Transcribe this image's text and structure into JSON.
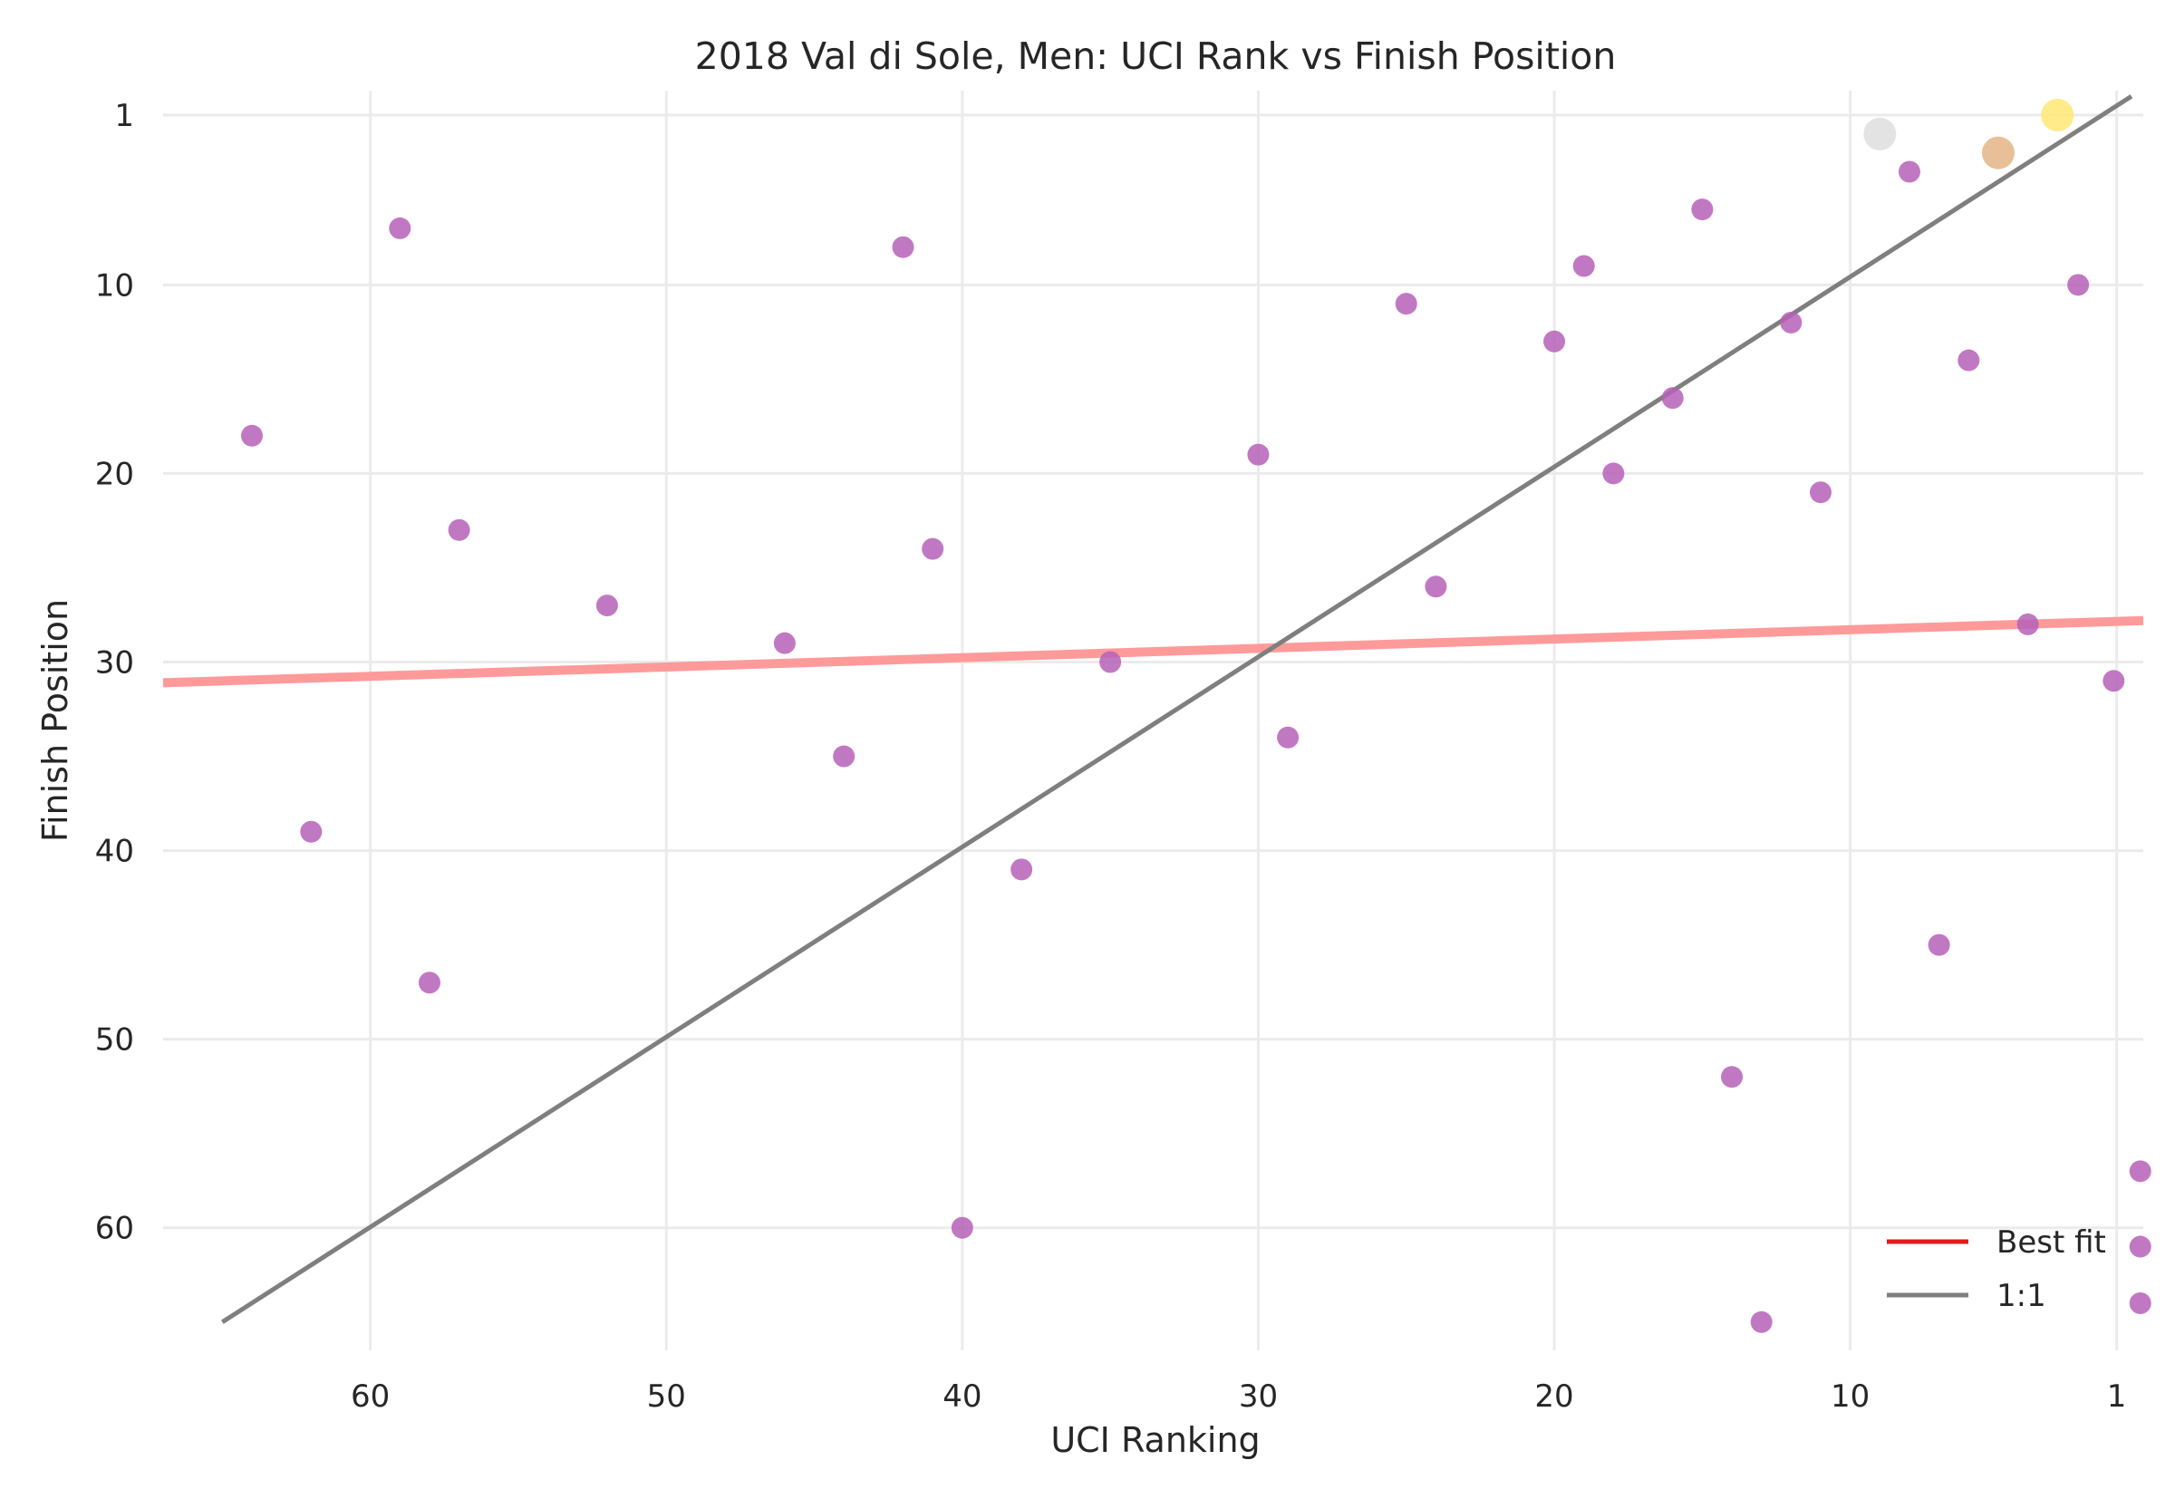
{
  "chart_data": {
    "type": "scatter",
    "title": "2018 Val di Sole, Men: UCI Rank vs Finish Position",
    "xlabel": "UCI Ranking",
    "ylabel": "Finish Position",
    "x_reversed": true,
    "y_reversed": true,
    "xlim": [
      67,
      0.1
    ],
    "ylim": [
      66.5,
      -0.3
    ],
    "xticks": [
      60,
      50,
      40,
      30,
      20,
      10,
      1
    ],
    "yticks": [
      1,
      10,
      20,
      30,
      40,
      50,
      60
    ],
    "grid": true,
    "legend": {
      "position": "bottom-right",
      "entries": [
        {
          "label": "Best fit",
          "color": "#e41a1c"
        },
        {
          "label": "1:1",
          "color": "#7f7f7f"
        }
      ]
    },
    "series": [
      {
        "color": "#b660b8",
        "points": [
          {
            "x": 64,
            "y": 18
          },
          {
            "x": 62,
            "y": 39
          },
          {
            "x": 59,
            "y": 7
          },
          {
            "x": 58,
            "y": 47
          },
          {
            "x": 57,
            "y": 23
          },
          {
            "x": 52,
            "y": 27
          },
          {
            "x": 46,
            "y": 29
          },
          {
            "x": 44,
            "y": 35
          },
          {
            "x": 42,
            "y": 8
          },
          {
            "x": 41,
            "y": 24
          },
          {
            "x": 40,
            "y": 60
          },
          {
            "x": 38,
            "y": 41
          },
          {
            "x": 35,
            "y": 30
          },
          {
            "x": 30,
            "y": 19
          },
          {
            "x": 29,
            "y": 34
          },
          {
            "x": 25,
            "y": 11
          },
          {
            "x": 24,
            "y": 26
          },
          {
            "x": 20,
            "y": 13
          },
          {
            "x": 19,
            "y": 9
          },
          {
            "x": 18,
            "y": 20
          },
          {
            "x": 16,
            "y": 16
          },
          {
            "x": 15,
            "y": 6
          },
          {
            "x": 14,
            "y": 52
          },
          {
            "x": 13,
            "y": 65
          },
          {
            "x": 12,
            "y": 12
          },
          {
            "x": 11,
            "y": 21
          },
          {
            "x": 8,
            "y": 4
          },
          {
            "x": 7,
            "y": 45
          },
          {
            "x": 6,
            "y": 14
          },
          {
            "x": 4,
            "y": 28
          },
          {
            "x": 2.3,
            "y": 10
          },
          {
            "x": 1.1,
            "y": 31
          },
          {
            "x": 0.2,
            "y": 57
          },
          {
            "x": 0.2,
            "y": 61
          },
          {
            "x": 0.2,
            "y": 64
          }
        ]
      },
      {
        "color": "#ffe97a",
        "points": [
          {
            "x": 3,
            "y": 1
          }
        ]
      },
      {
        "color": "#e0e0e0",
        "points": [
          {
            "x": 9,
            "y": 2
          }
        ]
      },
      {
        "color": "#e6b88c",
        "points": [
          {
            "x": 5,
            "y": 3
          }
        ]
      }
    ],
    "lines": [
      {
        "name": "Best fit",
        "color": "#ff9a9a",
        "x": [
          67,
          0.1
        ],
        "y": [
          31.1,
          27.8
        ]
      },
      {
        "name": "1:1",
        "color": "#7f7f7f",
        "x": [
          65,
          0.5
        ],
        "y": [
          65,
          0
        ]
      }
    ]
  }
}
